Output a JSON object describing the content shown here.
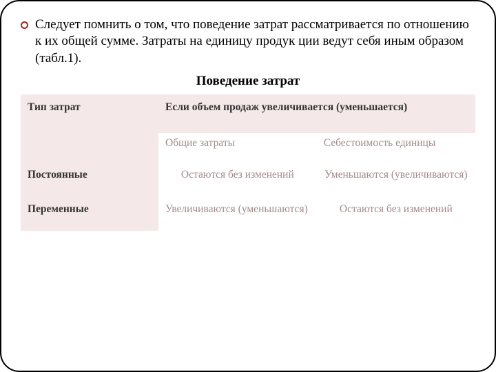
{
  "intro": "Следует помнить о том, что поведение затрат рассматривается по отношению к их общей сумме. Затраты на единицу продук ции ведут себя иным образом (табл.1).",
  "title": "Поведение затрат",
  "colors": {
    "bullet_border": "#a02820",
    "header_bg": "#f4e9e8",
    "muted_text": "#a38a88",
    "frame_border": "#000000",
    "background": "#ffffff"
  },
  "table": {
    "header_col1": "Тип затрат",
    "header_col2": "Если объем продаж увеличивается (уменьшается)",
    "sub_col2a": "Общие затраты",
    "sub_col2b": "Себестоимость единицы",
    "rows": [
      {
        "label": "Постоянные",
        "total": "Остаются без изменений",
        "unit": "Уменьшаются (увеличиваются)"
      },
      {
        "label": "Переменные",
        "total": "Увеличиваются (уменьшаются)",
        "unit": "Остаются без изменений"
      }
    ]
  }
}
